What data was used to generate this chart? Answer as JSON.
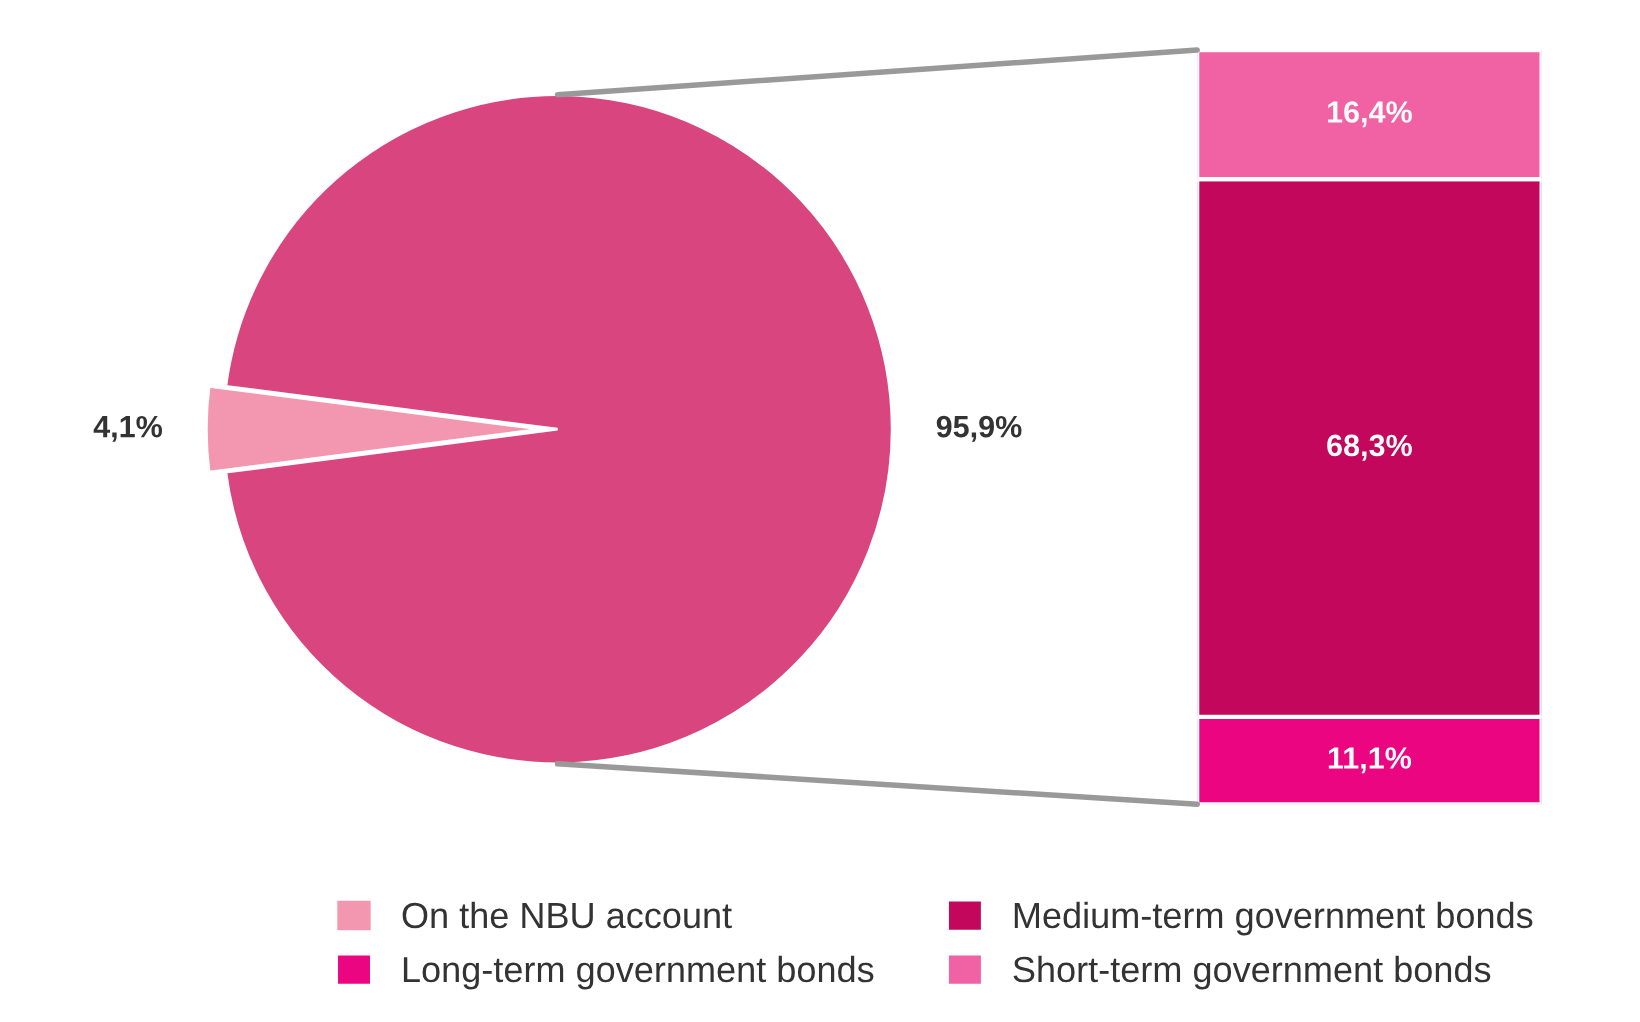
{
  "chart_data": [
    {
      "type": "pie",
      "categories": [
        null,
        "On the NBU account"
      ],
      "values": [
        95.9,
        4.1
      ],
      "colors": [
        "#d8457f",
        "#f396b0"
      ],
      "value_labels": [
        "95,9%",
        "4,1%"
      ],
      "legend": "bottom"
    },
    {
      "type": "bar",
      "stacked": true,
      "categories": [
        null
      ],
      "legend": "bottom",
      "tick_labels": false,
      "series": [
        {
          "name": "Long-term government bonds",
          "color": "#ec0580",
          "values": [
            11.1
          ],
          "value_labels": [
            "11,1%"
          ]
        },
        {
          "name": "Medium-term government bonds",
          "color": "#c2075c",
          "values": [
            68.3
          ],
          "value_labels": [
            "68,3%"
          ]
        },
        {
          "name": "Short-term government bonds",
          "color": "#f062a3",
          "values": [
            16.4
          ],
          "value_labels": [
            "16,4%"
          ]
        }
      ]
    }
  ]
}
